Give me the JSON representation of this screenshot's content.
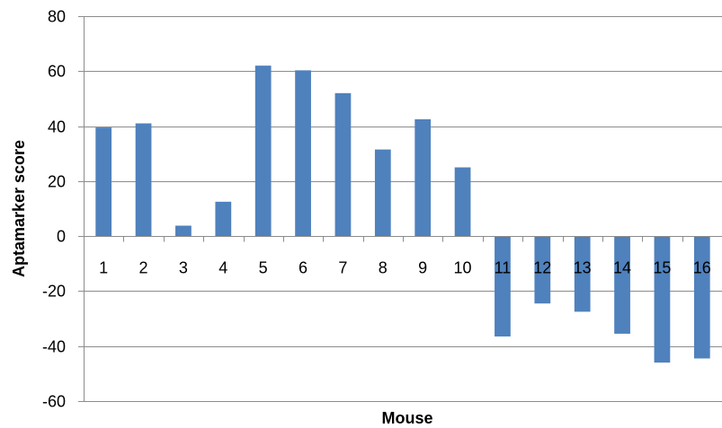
{
  "chart_data": {
    "type": "bar",
    "xlabel": "Mouse",
    "ylabel": "Aptamarker score",
    "ylim": [
      -60,
      80
    ],
    "yticks": [
      80,
      60,
      40,
      20,
      0,
      -20,
      -40,
      -60
    ],
    "categories": [
      "1",
      "2",
      "3",
      "4",
      "5",
      "6",
      "7",
      "8",
      "9",
      "10",
      "11",
      "12",
      "13",
      "14",
      "15",
      "16"
    ],
    "values": [
      39.5,
      41,
      3.8,
      12.5,
      62,
      60.3,
      52,
      31.5,
      42.5,
      25,
      -36.5,
      -24.5,
      -27.5,
      -35.5,
      -46,
      -44.5
    ],
    "bar_color": "#4f81bd",
    "grid": true,
    "legend": "none"
  }
}
